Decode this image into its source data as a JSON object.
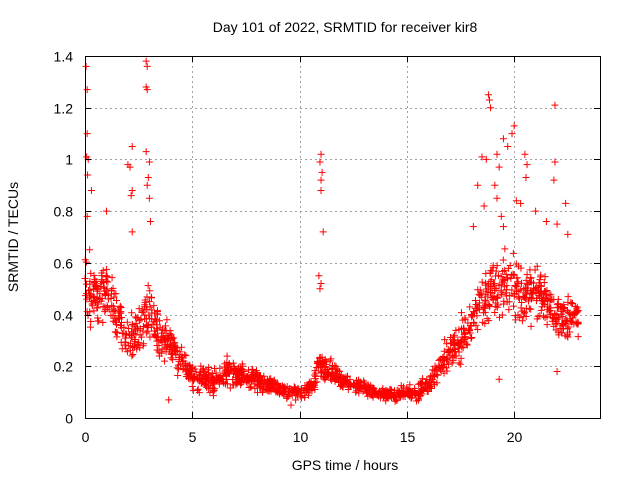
{
  "chart_data": {
    "type": "scatter",
    "title": "Day 101 of 2022, SRMTID for receiver kir8",
    "xlabel": "GPS time / hours",
    "ylabel": "SRMTID / TECUs",
    "xlim": [
      0,
      24
    ],
    "ylim": [
      0,
      1.4
    ],
    "xticks": [
      0,
      5,
      10,
      15,
      20
    ],
    "yticks": [
      0,
      0.2,
      0.4,
      0.6,
      0.8,
      1,
      1.2,
      1.4
    ],
    "xtick_labels": [
      "0",
      "5",
      "10",
      "15",
      "20"
    ],
    "ytick_labels": [
      "0",
      "0.2",
      "0.4",
      "0.6",
      "0.8",
      "1",
      "1.2",
      "1.4"
    ],
    "grid": true,
    "marker": "+",
    "color": "#ff0000",
    "series": [
      {
        "name": "SRMTID",
        "profile_x": [
          0,
          0.5,
          1,
          1.5,
          2,
          2.5,
          3,
          3.5,
          4,
          4.5,
          5,
          5.5,
          6,
          6.5,
          7,
          7.5,
          8,
          8.5,
          9,
          9.5,
          10,
          10.5,
          11,
          11.5,
          12,
          12.5,
          13,
          13.5,
          14,
          14.5,
          15,
          15.5,
          16,
          16.5,
          17,
          17.5,
          18,
          18.5,
          19,
          19.5,
          20,
          20.5,
          21,
          21.5,
          22,
          22.5,
          23
        ],
        "profile_y": [
          0.55,
          0.45,
          0.5,
          0.4,
          0.3,
          0.35,
          0.4,
          0.3,
          0.28,
          0.22,
          0.15,
          0.16,
          0.14,
          0.17,
          0.18,
          0.16,
          0.15,
          0.13,
          0.12,
          0.1,
          0.1,
          0.11,
          0.2,
          0.17,
          0.15,
          0.13,
          0.12,
          0.1,
          0.09,
          0.09,
          0.1,
          0.1,
          0.12,
          0.2,
          0.25,
          0.3,
          0.38,
          0.45,
          0.5,
          0.52,
          0.5,
          0.48,
          0.5,
          0.45,
          0.4,
          0.38,
          0.4
        ],
        "profile_spread": [
          0.25,
          0.2,
          0.18,
          0.18,
          0.15,
          0.15,
          0.2,
          0.15,
          0.12,
          0.1,
          0.08,
          0.08,
          0.08,
          0.08,
          0.09,
          0.08,
          0.07,
          0.06,
          0.05,
          0.05,
          0.05,
          0.05,
          0.1,
          0.07,
          0.06,
          0.05,
          0.05,
          0.04,
          0.04,
          0.04,
          0.04,
          0.05,
          0.06,
          0.08,
          0.12,
          0.14,
          0.16,
          0.18,
          0.2,
          0.2,
          0.2,
          0.2,
          0.2,
          0.18,
          0.16,
          0.14,
          0.12
        ],
        "num_points": 1600,
        "outliers": [
          {
            "x": 0.05,
            "y": 1.36
          },
          {
            "x": 0.1,
            "y": 1.27
          },
          {
            "x": 0.1,
            "y": 1.1
          },
          {
            "x": 0.08,
            "y": 1.01
          },
          {
            "x": 0.15,
            "y": 1.0
          },
          {
            "x": 0.12,
            "y": 0.94
          },
          {
            "x": 0.3,
            "y": 0.88
          },
          {
            "x": 0.1,
            "y": 0.78
          },
          {
            "x": 1.0,
            "y": 0.8
          },
          {
            "x": 2.85,
            "y": 1.38
          },
          {
            "x": 2.9,
            "y": 1.36
          },
          {
            "x": 2.85,
            "y": 1.28
          },
          {
            "x": 2.9,
            "y": 1.27
          },
          {
            "x": 2.2,
            "y": 1.05
          },
          {
            "x": 2.85,
            "y": 1.03
          },
          {
            "x": 3.0,
            "y": 0.99
          },
          {
            "x": 2.0,
            "y": 0.98
          },
          {
            "x": 2.1,
            "y": 0.97
          },
          {
            "x": 2.2,
            "y": 0.88
          },
          {
            "x": 2.15,
            "y": 0.86
          },
          {
            "x": 2.95,
            "y": 0.93
          },
          {
            "x": 2.9,
            "y": 0.9
          },
          {
            "x": 3.0,
            "y": 0.85
          },
          {
            "x": 3.05,
            "y": 0.76
          },
          {
            "x": 2.2,
            "y": 0.72
          },
          {
            "x": 11.0,
            "y": 1.02
          },
          {
            "x": 10.95,
            "y": 0.99
          },
          {
            "x": 11.05,
            "y": 0.95
          },
          {
            "x": 11.0,
            "y": 0.92
          },
          {
            "x": 11.0,
            "y": 0.88
          },
          {
            "x": 11.1,
            "y": 0.72
          },
          {
            "x": 10.9,
            "y": 0.55
          },
          {
            "x": 11.0,
            "y": 0.52
          },
          {
            "x": 10.95,
            "y": 0.5
          },
          {
            "x": 18.8,
            "y": 1.25
          },
          {
            "x": 18.85,
            "y": 1.23
          },
          {
            "x": 18.9,
            "y": 1.2
          },
          {
            "x": 21.9,
            "y": 1.21
          },
          {
            "x": 20.0,
            "y": 1.13
          },
          {
            "x": 19.9,
            "y": 1.1
          },
          {
            "x": 19.5,
            "y": 1.08
          },
          {
            "x": 19.7,
            "y": 1.05
          },
          {
            "x": 18.5,
            "y": 1.01
          },
          {
            "x": 18.7,
            "y": 1.0
          },
          {
            "x": 19.2,
            "y": 1.02
          },
          {
            "x": 20.5,
            "y": 1.02
          },
          {
            "x": 20.6,
            "y": 0.98
          },
          {
            "x": 21.9,
            "y": 0.99
          },
          {
            "x": 19.3,
            "y": 0.97
          },
          {
            "x": 20.55,
            "y": 0.93
          },
          {
            "x": 21.85,
            "y": 0.92
          },
          {
            "x": 18.3,
            "y": 0.9
          },
          {
            "x": 19.1,
            "y": 0.9
          },
          {
            "x": 19.2,
            "y": 0.85
          },
          {
            "x": 20.1,
            "y": 0.84
          },
          {
            "x": 20.3,
            "y": 0.83
          },
          {
            "x": 22.4,
            "y": 0.83
          },
          {
            "x": 18.6,
            "y": 0.82
          },
          {
            "x": 21.0,
            "y": 0.8
          },
          {
            "x": 21.5,
            "y": 0.76
          },
          {
            "x": 19.4,
            "y": 0.78
          },
          {
            "x": 19.5,
            "y": 0.74
          },
          {
            "x": 18.1,
            "y": 0.74
          },
          {
            "x": 22.0,
            "y": 0.75
          },
          {
            "x": 22.5,
            "y": 0.71
          },
          {
            "x": 19.3,
            "y": 0.15
          },
          {
            "x": 22.0,
            "y": 0.18
          },
          {
            "x": 3.9,
            "y": 0.07
          },
          {
            "x": 9.6,
            "y": 0.05
          }
        ]
      }
    ]
  }
}
